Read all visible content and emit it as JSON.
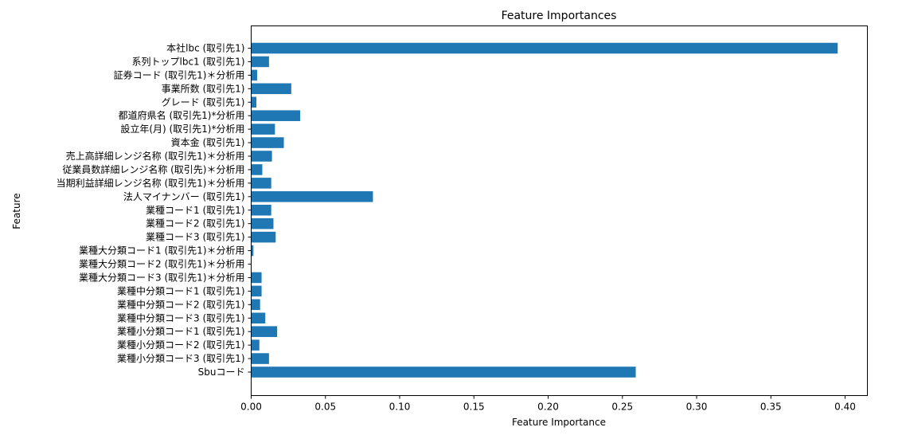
{
  "chart_data": {
    "type": "bar",
    "orientation": "horizontal",
    "title": "Feature Importances",
    "xlabel": "Feature Importance",
    "ylabel": "Feature",
    "xlim": [
      0,
      0.415
    ],
    "xticks": [
      0.0,
      0.05,
      0.1,
      0.15,
      0.2,
      0.25,
      0.3,
      0.35,
      0.4
    ],
    "xtick_labels": [
      "0.00",
      "0.05",
      "0.10",
      "0.15",
      "0.20",
      "0.25",
      "0.30",
      "0.35",
      "0.40"
    ],
    "grid": false,
    "bar_color": "#1f77b4",
    "categories": [
      "本社lbc (取引先1)",
      "系列トップlbc1 (取引先1)",
      "証券コード (取引先1)＊分析用",
      "事業所数 (取引先1)",
      "グレード (取引先1)",
      "都道府県名 (取引先1)*分析用",
      "設立年(月) (取引先1)*分析用",
      "資本金 (取引先1)",
      "売上高詳細レンジ名称 (取引先1)＊分析用",
      "従業員数詳細レンジ名称 (取引先)＊分析用",
      "当期利益詳細レンジ名称 (取引先1)＊分析用",
      "法人マイナンバー (取引先1)",
      "業種コード1 (取引先1)",
      "業種コード2 (取引先1)",
      "業種コード3 (取引先1)",
      "業種大分類コード1 (取引先1)＊分析用",
      "業種大分類コード2 (取引先1)＊分析用",
      "業種大分類コード3 (取引先1)＊分析用",
      "業種中分類コード1 (取引先1)",
      "業種中分類コード2 (取引先1)",
      "業種中分類コード3 (取引先1)",
      "業種小分類コード1 (取引先1)",
      "業種小分類コード2 (取引先1)",
      "業種小分類コード3 (取引先1)",
      "Sbuコード"
    ],
    "values": [
      0.395,
      0.012,
      0.004,
      0.027,
      0.0035,
      0.033,
      0.016,
      0.022,
      0.014,
      0.0075,
      0.0135,
      0.082,
      0.0135,
      0.015,
      0.0165,
      0.0015,
      0.0002,
      0.007,
      0.007,
      0.006,
      0.0095,
      0.0175,
      0.0055,
      0.012,
      0.259
    ]
  }
}
